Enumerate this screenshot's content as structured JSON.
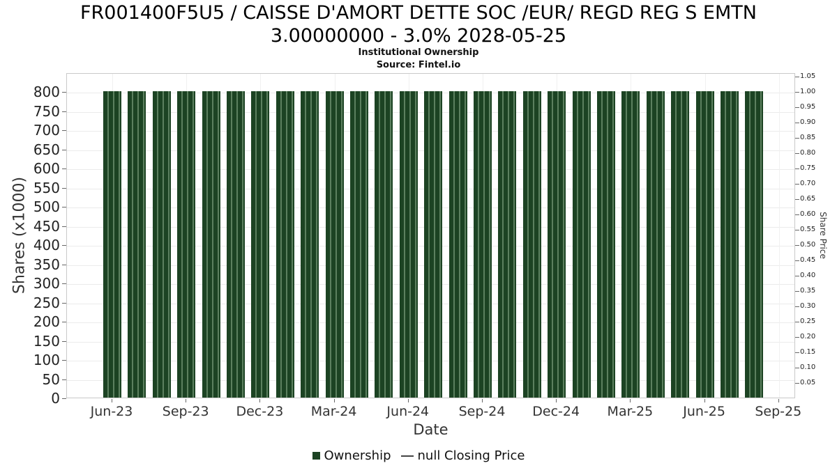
{
  "title_line1": "FR001400F5U5 / CAISSE D'AMORT DETTE SOC /EUR/ REGD REG S EMTN",
  "title_line2": "3.00000000 - 3.0% 2028-05-25",
  "subtitle": "Institutional Ownership",
  "source": "Source: Fintel.io",
  "legend": {
    "ownership_label": "Ownership",
    "closing_price_label": "null Closing Price",
    "ownership_color": "#1c4323",
    "line_color": "#444444"
  },
  "chart_data": {
    "type": "bar",
    "title": "FR001400F5U5 / CAISSE D'AMORT DETTE SOC /EUR/ REGD REG S EMTN 3.00000000 - 3.0% 2028-05-25",
    "subtitle": "Institutional Ownership",
    "source": "Source: Fintel.io",
    "xlabel": "Date",
    "ylabel_left": "Shares (x1000)",
    "ylabel_right": "Share Price",
    "categories": [
      "Jun-23",
      "Jul-23",
      "Aug-23",
      "Sep-23",
      "Oct-23",
      "Nov-23",
      "Dec-23",
      "Jan-24",
      "Feb-24",
      "Mar-24",
      "Apr-24",
      "May-24",
      "Jun-24",
      "Jul-24",
      "Aug-24",
      "Sep-24",
      "Oct-24",
      "Nov-24",
      "Dec-24",
      "Jan-25",
      "Feb-25",
      "Mar-25",
      "Apr-25",
      "May-25",
      "Jun-25",
      "Jul-25",
      "Aug-25"
    ],
    "values": [
      800,
      800,
      800,
      800,
      800,
      800,
      800,
      800,
      800,
      800,
      800,
      800,
      800,
      800,
      800,
      800,
      800,
      800,
      800,
      800,
      800,
      800,
      800,
      800,
      800,
      800,
      800
    ],
    "series": [
      {
        "name": "Ownership",
        "type": "bar",
        "values": [
          800,
          800,
          800,
          800,
          800,
          800,
          800,
          800,
          800,
          800,
          800,
          800,
          800,
          800,
          800,
          800,
          800,
          800,
          800,
          800,
          800,
          800,
          800,
          800,
          800,
          800,
          800
        ]
      },
      {
        "name": "null Closing Price",
        "type": "line",
        "values": []
      }
    ],
    "x_tick_labels": [
      "Jun-23",
      "Sep-23",
      "Dec-23",
      "Mar-24",
      "Jun-24",
      "Sep-24",
      "Dec-24",
      "Mar-25",
      "Jun-25",
      "Sep-25"
    ],
    "left_ticks": [
      0,
      50,
      100,
      150,
      200,
      250,
      300,
      350,
      400,
      450,
      500,
      550,
      600,
      650,
      700,
      750,
      800
    ],
    "right_ticks": [
      "0.05",
      "0.10",
      "0.15",
      "0.20",
      "0.25",
      "0.30",
      "0.35",
      "0.40",
      "0.45",
      "0.50",
      "0.55",
      "0.60",
      "0.65",
      "0.70",
      "0.75",
      "0.80",
      "0.85",
      "0.90",
      "0.95",
      "1.00",
      "1.05"
    ],
    "left_axis_max": 850,
    "right_axis_max": 1.0625,
    "grid": true,
    "legend_position": "bottom",
    "bar_color": "#1c4323",
    "bar_stripe_color": "#5c805f"
  }
}
